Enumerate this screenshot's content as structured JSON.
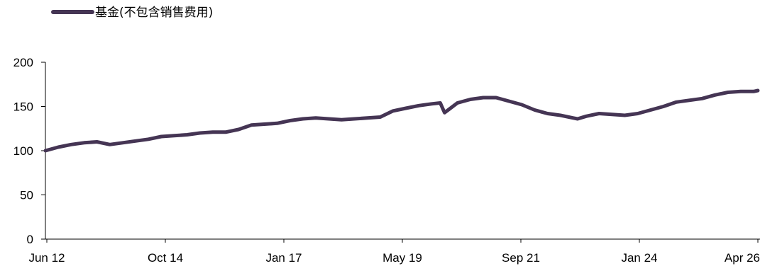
{
  "chart_data": {
    "type": "line",
    "legend": {
      "placement": "top-left",
      "label": "基金(不包含销售费用)"
    },
    "x_tick_labels": [
      "Jun 12",
      "Oct 14",
      "Jan 17",
      "May 19",
      "Sep 21",
      "Jan 24",
      "Apr 26"
    ],
    "y_ticks": [
      0,
      50,
      100,
      150,
      200
    ],
    "ylim": [
      0,
      200
    ],
    "grid": false,
    "colors": {
      "line": "#453554",
      "axis": "#000000"
    },
    "series": [
      {
        "name": "基金(不包含销售费用)",
        "x": [
          "2012-06",
          "2012-09",
          "2012-12",
          "2013-03",
          "2013-06",
          "2013-09",
          "2013-12",
          "2014-03",
          "2014-06",
          "2014-09",
          "2014-12",
          "2015-03",
          "2015-06",
          "2015-09",
          "2015-12",
          "2016-03",
          "2016-06",
          "2016-09",
          "2016-12",
          "2017-03",
          "2017-06",
          "2017-09",
          "2017-12",
          "2018-03",
          "2018-06",
          "2018-09",
          "2018-12",
          "2019-03",
          "2019-06",
          "2019-09",
          "2019-12",
          "2020-02",
          "2020-03",
          "2020-06",
          "2020-09",
          "2020-12",
          "2021-03",
          "2021-06",
          "2021-09",
          "2021-12",
          "2022-03",
          "2022-06",
          "2022-09",
          "2022-10",
          "2022-12",
          "2023-03",
          "2023-06",
          "2023-09",
          "2023-12",
          "2024-03",
          "2024-06",
          "2024-09",
          "2024-12",
          "2025-03",
          "2025-06",
          "2025-09",
          "2025-12",
          "2026-03",
          "2026-04"
        ],
        "values": [
          100,
          104,
          107,
          109,
          110,
          107,
          109,
          111,
          113,
          116,
          117,
          118,
          120,
          121,
          121,
          124,
          129,
          130,
          131,
          134,
          136,
          137,
          136,
          135,
          136,
          137,
          138,
          145,
          148,
          151,
          153,
          154,
          143,
          154,
          158,
          160,
          160,
          156,
          152,
          146,
          142,
          140,
          137,
          136,
          139,
          142,
          141,
          140,
          142,
          146,
          150,
          155,
          157,
          159,
          163,
          166,
          167,
          167,
          168
        ]
      }
    ]
  }
}
